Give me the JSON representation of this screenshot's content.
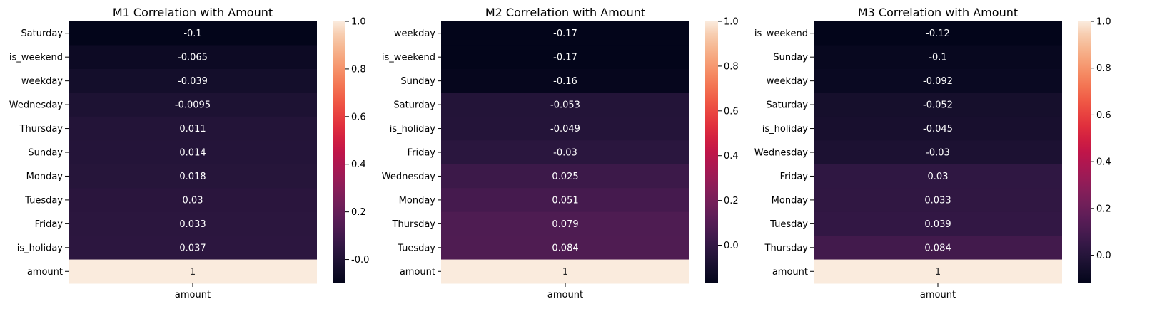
{
  "chart_data": [
    {
      "type": "heatmap",
      "title": "M1 Correlation with Amount",
      "columns": [
        "amount"
      ],
      "rows": [
        "Saturday",
        "is_weekend",
        "weekday",
        "Wednesday",
        "Thursday",
        "Sunday",
        "Monday",
        "Tuesday",
        "Friday",
        "is_holiday",
        "amount"
      ],
      "values": [
        -0.1,
        -0.065,
        -0.039,
        -0.0095,
        0.011,
        0.014,
        0.018,
        0.03,
        0.033,
        0.037,
        1
      ],
      "colorbar": {
        "min": -0.1,
        "max": 1.0,
        "ticks": [
          "-0.0",
          "0.2",
          "0.4",
          "0.6",
          "0.8",
          "1.0"
        ],
        "tick_values": [
          0,
          0.2,
          0.4,
          0.6,
          0.8,
          1.0
        ]
      }
    },
    {
      "type": "heatmap",
      "title": "M2 Correlation with Amount",
      "columns": [
        "amount"
      ],
      "rows": [
        "weekday",
        "is_weekend",
        "Sunday",
        "Saturday",
        "is_holiday",
        "Friday",
        "Wednesday",
        "Monday",
        "Thursday",
        "Tuesday",
        "amount"
      ],
      "values": [
        -0.17,
        -0.17,
        -0.16,
        -0.053,
        -0.049,
        -0.03,
        0.025,
        0.051,
        0.079,
        0.084,
        1
      ],
      "colorbar": {
        "min": -0.17,
        "max": 1.0,
        "ticks": [
          "0.0",
          "0.2",
          "0.4",
          "0.6",
          "0.8",
          "1.0"
        ],
        "tick_values": [
          0,
          0.2,
          0.4,
          0.6,
          0.8,
          1.0
        ]
      }
    },
    {
      "type": "heatmap",
      "title": "M3 Correlation with Amount",
      "columns": [
        "amount"
      ],
      "rows": [
        "is_weekend",
        "Sunday",
        "weekday",
        "Saturday",
        "is_holiday",
        "Wednesday",
        "Friday",
        "Monday",
        "Tuesday",
        "Thursday",
        "amount"
      ],
      "values": [
        -0.12,
        -0.1,
        -0.092,
        -0.052,
        -0.045,
        -0.03,
        0.03,
        0.033,
        0.039,
        0.084,
        1
      ],
      "colorbar": {
        "min": -0.12,
        "max": 1.0,
        "ticks": [
          "0.0",
          "0.2",
          "0.4",
          "0.6",
          "0.8",
          "1.0"
        ],
        "tick_values": [
          0,
          0.2,
          0.4,
          0.6,
          0.8,
          1.0
        ]
      }
    }
  ]
}
